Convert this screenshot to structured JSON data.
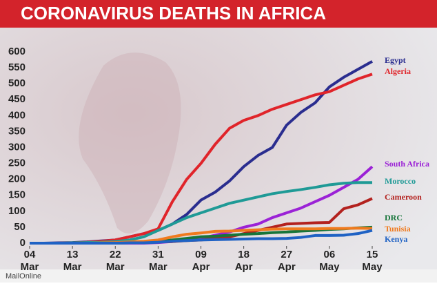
{
  "chart_data": {
    "type": "line",
    "title": "CORONAVIRUS DEATHS IN AFRICA",
    "source": "MailOnline",
    "x": [
      "04 Mar",
      "07 Mar",
      "10 Mar",
      "13 Mar",
      "16 Mar",
      "19 Mar",
      "22 Mar",
      "25 Mar",
      "28 Mar",
      "31 Mar",
      "03 Apr",
      "06 Apr",
      "09 Apr",
      "12 Apr",
      "15 Apr",
      "18 Apr",
      "21 Apr",
      "24 Apr",
      "27 Apr",
      "30 Apr",
      "03 May",
      "06 May",
      "09 May",
      "12 May",
      "15 May"
    ],
    "xticks": [
      {
        "value": "04 Mar",
        "label": [
          "04",
          "Mar"
        ]
      },
      {
        "value": "13 Mar",
        "label": [
          "13",
          "Mar"
        ]
      },
      {
        "value": "22 Mar",
        "label": [
          "22",
          "Mar"
        ]
      },
      {
        "value": "31 Mar",
        "label": [
          "31",
          "Mar"
        ]
      },
      {
        "value": "09 Apr",
        "label": [
          "09",
          "Apr"
        ]
      },
      {
        "value": "18 Apr",
        "label": [
          "18",
          "Apr"
        ]
      },
      {
        "value": "27 Apr",
        "label": [
          "27",
          "Apr"
        ]
      },
      {
        "value": "06 May",
        "label": [
          "06",
          "May"
        ]
      },
      {
        "value": "15 May",
        "label": [
          "15",
          "May"
        ]
      }
    ],
    "ylim": [
      0,
      600
    ],
    "yticks": [
      0,
      50,
      100,
      150,
      200,
      250,
      300,
      350,
      400,
      450,
      500,
      550,
      600
    ],
    "grid": false,
    "series": [
      {
        "name": "Egypt",
        "color": "#2a2d8f",
        "values": [
          0,
          0,
          1,
          2,
          4,
          7,
          10,
          20,
          30,
          40,
          60,
          90,
          135,
          160,
          195,
          240,
          275,
          300,
          370,
          410,
          440,
          490,
          520,
          545,
          570
        ]
      },
      {
        "name": "Algeria",
        "color": "#e0242a",
        "values": [
          0,
          0,
          0,
          1,
          3,
          6,
          10,
          20,
          30,
          45,
          130,
          200,
          250,
          310,
          360,
          385,
          400,
          420,
          435,
          450,
          465,
          475,
          495,
          515,
          530
        ]
      },
      {
        "name": "South Africa",
        "color": "#9b22d6",
        "values": [
          0,
          0,
          0,
          0,
          0,
          0,
          0,
          0,
          0,
          2,
          5,
          10,
          15,
          25,
          35,
          50,
          60,
          80,
          95,
          110,
          130,
          150,
          175,
          200,
          240
        ]
      },
      {
        "name": "Morocco",
        "color": "#1f9a96",
        "values": [
          0,
          0,
          0,
          1,
          2,
          3,
          5,
          10,
          20,
          40,
          60,
          80,
          95,
          110,
          125,
          135,
          145,
          155,
          162,
          168,
          175,
          183,
          188,
          190,
          190
        ]
      },
      {
        "name": "Cameroon",
        "color": "#b3211e",
        "values": [
          0,
          0,
          0,
          0,
          0,
          0,
          1,
          2,
          3,
          4,
          5,
          8,
          10,
          15,
          20,
          30,
          40,
          50,
          60,
          62,
          64,
          65,
          108,
          120,
          140
        ]
      },
      {
        "name": "DRC",
        "color": "#17753a",
        "values": [
          0,
          0,
          0,
          0,
          0,
          0,
          0,
          1,
          3,
          6,
          10,
          15,
          20,
          22,
          25,
          28,
          30,
          33,
          35,
          38,
          40,
          43,
          45,
          48,
          50
        ]
      },
      {
        "name": "Tunisia",
        "color": "#f07a1e",
        "values": [
          0,
          0,
          0,
          0,
          0,
          1,
          2,
          4,
          6,
          10,
          20,
          28,
          32,
          37,
          38,
          40,
          42,
          44,
          45,
          45,
          45,
          46,
          46,
          47,
          46
        ]
      },
      {
        "name": "Kenya",
        "color": "#1f62c4",
        "values": [
          0,
          0,
          0,
          0,
          0,
          0,
          0,
          1,
          1,
          3,
          6,
          8,
          10,
          11,
          12,
          13,
          14,
          14,
          15,
          18,
          24,
          24,
          25,
          30,
          40
        ]
      }
    ]
  }
}
